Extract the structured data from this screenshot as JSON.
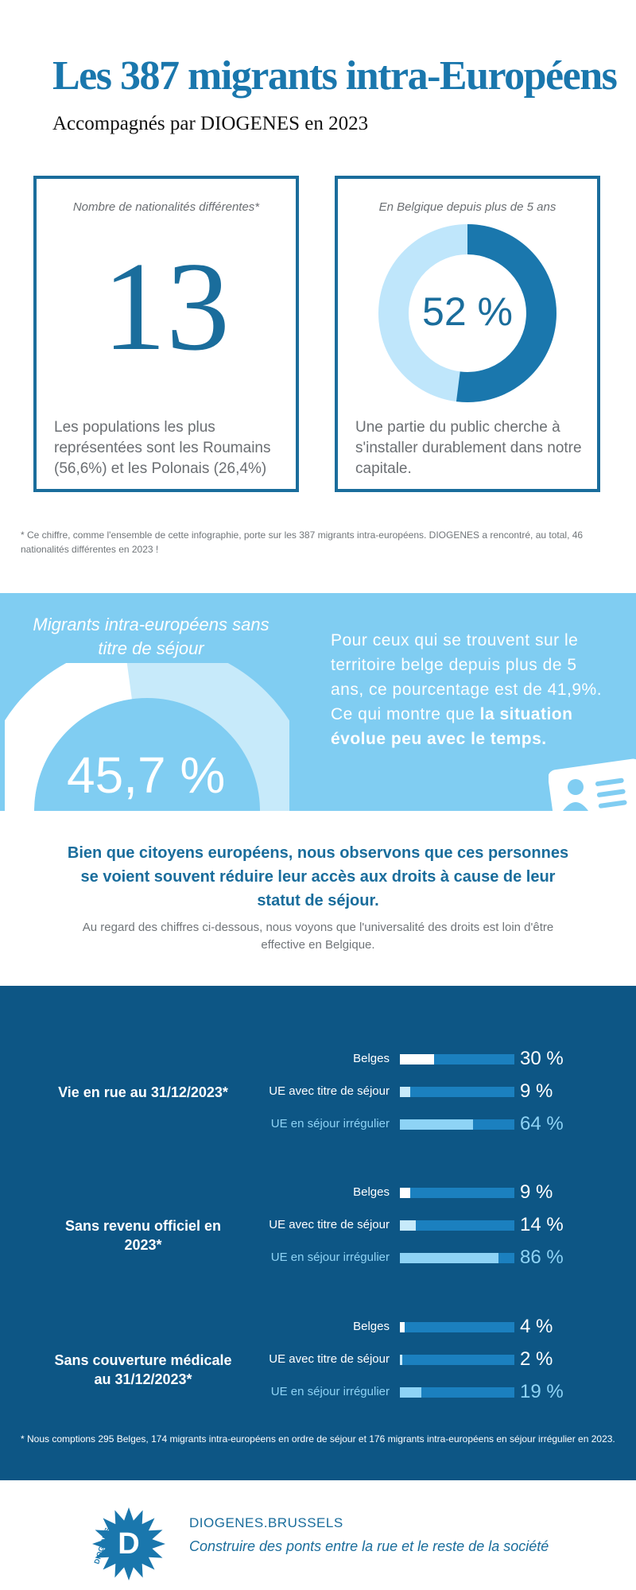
{
  "header": {
    "title": "Les 387 migrants intra-Européens",
    "subtitle": "Accompagnés par DIOGENES en 2023"
  },
  "card_nationalities": {
    "caption": "Nombre de nationalités différentes*",
    "number": "13",
    "text": "Les populations les plus représentées sont les Roumains (56,6%) et les Polonais (26,4%)"
  },
  "card_belgium": {
    "caption": "En Belgique depuis plus de 5 ans",
    "percent_label": "52 %",
    "percent_value": 52,
    "text": "Une partie du public cherche à s'installer durablement dans notre capitale."
  },
  "footnote_top": "* Ce chiffre, comme l'ensemble de cette infographie, porte sur les 387 migrants intra-européens. DIOGENES a rencontré, au total, 46 nationalités différentes en 2023 !",
  "no_permit": {
    "caption": "Migrants intra-européens sans titre de séjour",
    "percent_label": "45,7 %",
    "percent_value": 45.7,
    "text_plain": "Pour ceux qui se trouvent sur le territoire belge depuis plus de 5 ans, ce pourcentage est de 41,9%. Ce qui montre que ",
    "text_bold": "la situation évolue peu avec le temps."
  },
  "statement": {
    "headline": "Bien que citoyens européens, nous observons que ces personnes se voient souvent réduire leur accès aux droits à cause de leur statut de séjour.",
    "sub": "Au regard des chiffres ci-dessous, nous voyons que l'universalité des droits est loin d'être effective en Belgique."
  },
  "chart_data": {
    "type": "bar",
    "groups": [
      {
        "label": "Vie en rue au 31/12/2023*",
        "rows": [
          {
            "name": "Belges",
            "value": 30,
            "label": "30 %"
          },
          {
            "name": "UE avec titre de séjour",
            "value": 9,
            "label": "9 %"
          },
          {
            "name": "UE en séjour irrégulier",
            "value": 64,
            "label": "64 %"
          }
        ]
      },
      {
        "label": "Sans revenu officiel en 2023*",
        "rows": [
          {
            "name": "Belges",
            "value": 9,
            "label": "9 %"
          },
          {
            "name": "UE avec titre de séjour",
            "value": 14,
            "label": "14 %"
          },
          {
            "name": "UE en séjour irrégulier",
            "value": 86,
            "label": "86 %"
          }
        ]
      },
      {
        "label": "Sans couverture médicale au 31/12/2023*",
        "rows": [
          {
            "name": "Belges",
            "value": 4,
            "label": "4 %"
          },
          {
            "name": "UE avec titre de séjour",
            "value": 2,
            "label": "2 %"
          },
          {
            "name": "UE en séjour irrégulier",
            "value": 19,
            "label": "19 %"
          }
        ]
      }
    ],
    "ylim": [
      0,
      100
    ],
    "colors": {
      "Belges": "#ffffff",
      "UE avec titre de séjour": "#c7eafa",
      "UE en séjour irrégulier": "#8ed3f5",
      "track": "#1b80bf"
    }
  },
  "footnote_bottom": "* Nous comptions 295 Belges, 174 migrants intra-européens en ordre de séjour et 176 migrants intra-européens en séjour irrégulier en 2023.",
  "footer": {
    "logo_text": "DIOGENES",
    "logo_letter": "D",
    "site": "DIOGENES.BRUSSELS",
    "tagline": "Construire des ponts entre la rue et le reste de la société"
  },
  "colors": {
    "brand_blue": "#1a6d9c",
    "title_blue": "#1a77ad",
    "light_band": "#80cdf2",
    "dark_band": "#0d5685"
  }
}
